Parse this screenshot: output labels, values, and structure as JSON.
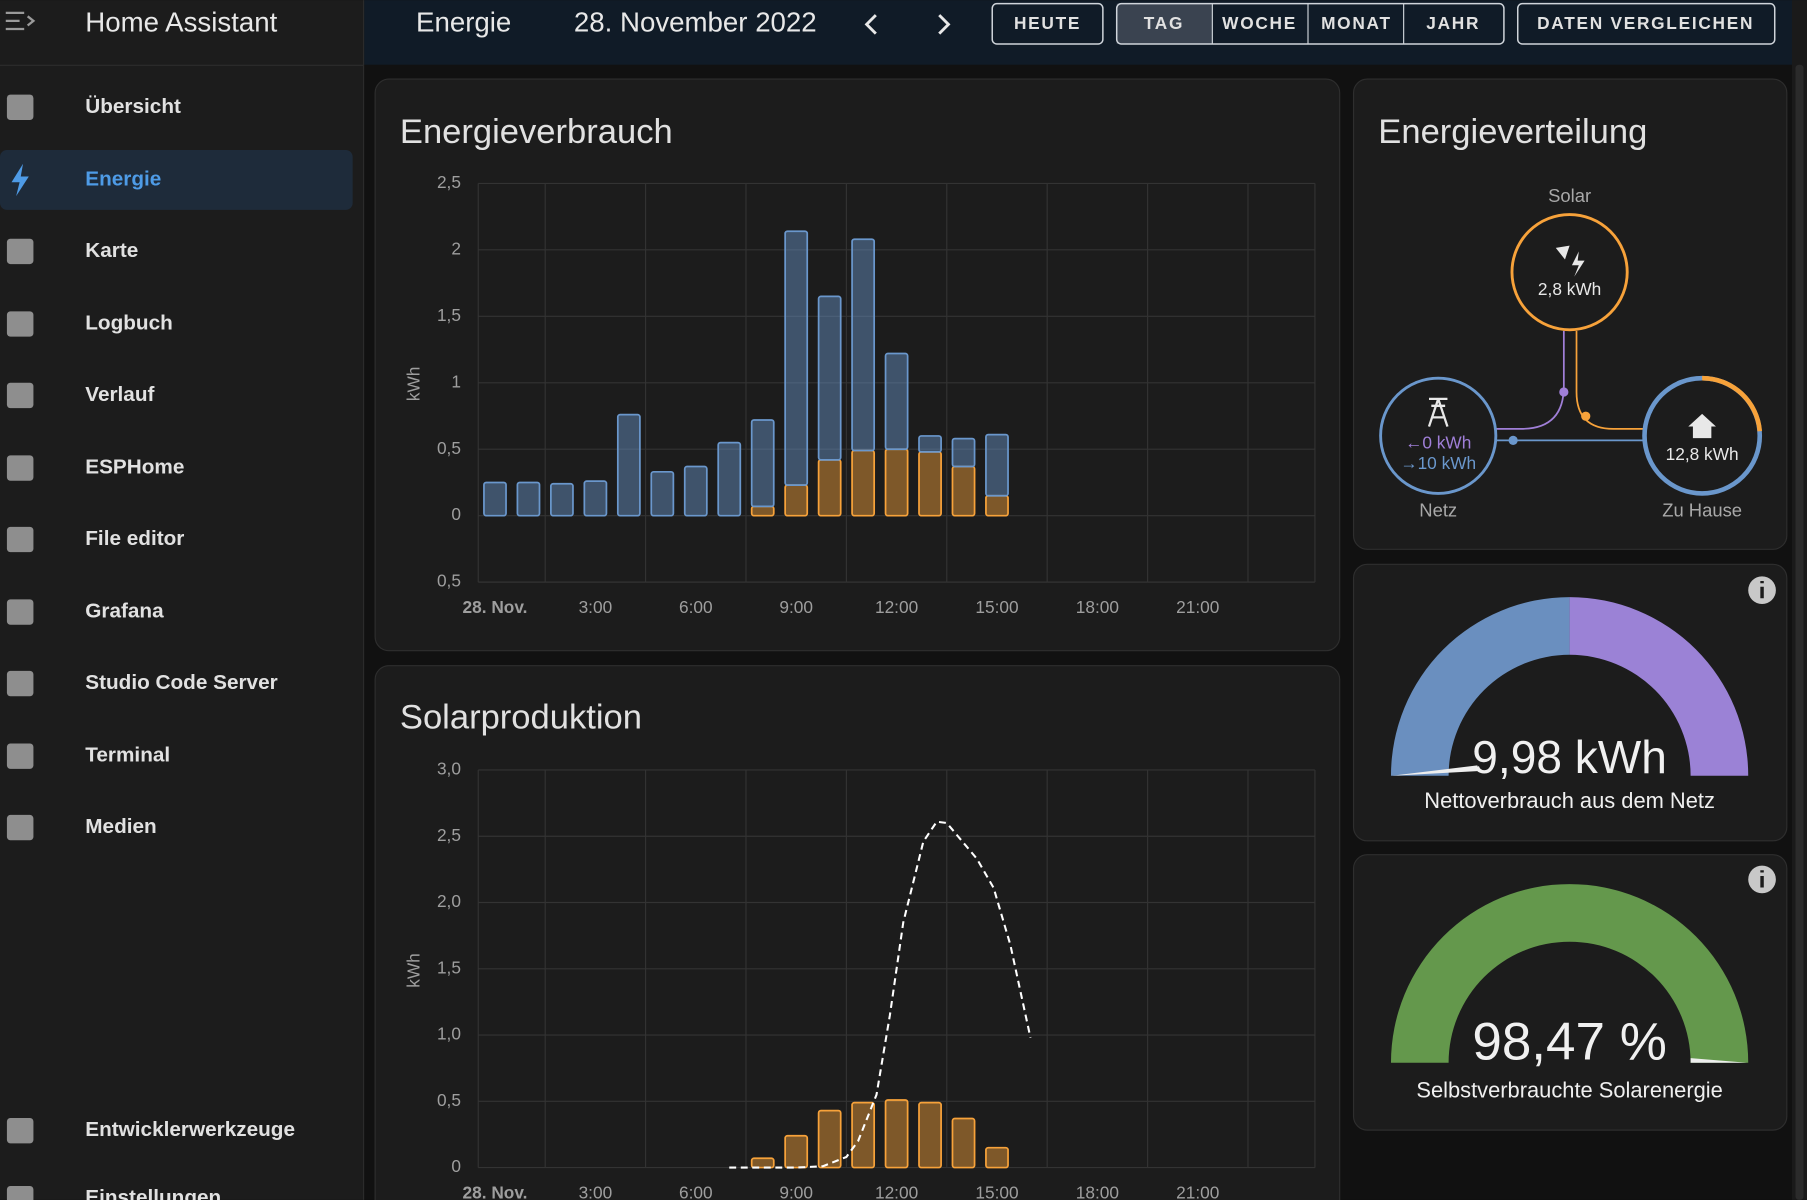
{
  "sidebar": {
    "title": "Home Assistant",
    "items": [
      "Übersicht",
      "Energie",
      "Karte",
      "Logbuch",
      "Verlauf",
      "ESPHome",
      "File editor",
      "Grafana",
      "Studio Code Server",
      "Terminal",
      "Medien"
    ],
    "bottom_items": [
      "Entwicklerwerkzeuge",
      "Einstellungen"
    ]
  },
  "header": {
    "title": "Energie",
    "date": "28. November 2022",
    "today": "HEUTE",
    "periods": [
      "TAG",
      "WOCHE",
      "MONAT",
      "JAHR"
    ],
    "compare": "DATEN VERGLEICHEN"
  },
  "consumption": {
    "type": "bar",
    "title": "Energieverbrauch",
    "y_label": "kWh",
    "x": [
      0,
      1,
      2,
      3,
      4,
      5,
      6,
      7,
      8,
      9,
      10,
      11,
      12,
      13,
      14,
      15
    ],
    "series": [
      {
        "color": "#f7a23a",
        "values": [
          0,
          0,
          0,
          0,
          0,
          0,
          0,
          0,
          0.07,
          0.23,
          0.42,
          0.49,
          0.5,
          0.48,
          0.37,
          0.15
        ]
      },
      {
        "color": "#6a97cc",
        "values": [
          0.25,
          0.25,
          0.24,
          0.26,
          0.76,
          0.33,
          0.37,
          0.55,
          0.65,
          1.91,
          1.23,
          1.59,
          0.72,
          0.12,
          0.21,
          0.46
        ]
      }
    ],
    "xlim": [
      -0.5,
      24.5
    ],
    "ylim": [
      -0.5,
      2.5
    ],
    "yticks": [
      {
        "value": 2.5,
        "label": "2,5"
      },
      2,
      {
        "value": 1.5,
        "label": "1,5"
      },
      1,
      {
        "value": 0.5,
        "label": "0,5"
      },
      0,
      {
        "value": -0.5,
        "label": "0,5"
      }
    ],
    "xticks": [
      {
        "value": 0,
        "label": "28. Nov."
      },
      {
        "value": 3,
        "label": "3:00"
      },
      {
        "value": 6,
        "label": "6:00"
      },
      {
        "value": 9,
        "label": "9:00"
      },
      {
        "value": 12,
        "label": "12:00"
      },
      {
        "value": 15,
        "label": "15:00"
      },
      {
        "value": 18,
        "label": "18:00"
      },
      {
        "value": 21,
        "label": "21:00"
      }
    ],
    "grid": true
  },
  "solar": {
    "type": "bar",
    "title": "Solarproduktion",
    "y_label": "kWh",
    "x": [
      8,
      9,
      10,
      11,
      12,
      13,
      14,
      15
    ],
    "series": [
      {
        "color": "#f7a23a",
        "values": [
          0.07,
          0.24,
          0.43,
          0.49,
          0.51,
          0.49,
          0.37,
          0.15
        ]
      }
    ],
    "forecast": {
      "color": "#ffffff",
      "x": [
        7,
        8,
        9,
        9.8,
        10.5,
        10.85,
        11.4,
        11.8,
        12.2,
        12.8,
        13.2,
        13.5,
        14.4,
        14.9,
        15.4,
        16
      ],
      "values": [
        0,
        0,
        0,
        0.01,
        0.08,
        0.2,
        0.55,
        1.15,
        1.85,
        2.46,
        2.61,
        2.6,
        2.33,
        2.11,
        1.68,
        0.98
      ]
    },
    "xlim": [
      -0.5,
      24.5
    ],
    "ylim": [
      0,
      3
    ],
    "yticks": [
      {
        "value": 3,
        "label": "3,0"
      },
      {
        "value": 2.5,
        "label": "2,5"
      },
      {
        "value": 2,
        "label": "2,0"
      },
      {
        "value": 1.5,
        "label": "1,5"
      },
      {
        "value": 1,
        "label": "1,0"
      },
      {
        "value": 0.5,
        "label": "0,5"
      },
      0
    ],
    "xticks": [
      {
        "value": 0,
        "label": "28. Nov."
      },
      {
        "value": 3,
        "label": "3:00"
      },
      {
        "value": 6,
        "label": "6:00"
      },
      {
        "value": 9,
        "label": "9:00"
      },
      {
        "value": 12,
        "label": "12:00"
      },
      {
        "value": 15,
        "label": "15:00"
      },
      {
        "value": 18,
        "label": "18:00"
      },
      {
        "value": 21,
        "label": "21:00"
      }
    ],
    "grid": true
  },
  "distribution": {
    "title": "Energieverteilung",
    "solar": {
      "label": "Solar",
      "value": "2,8 kWh"
    },
    "grid": {
      "label": "Netz",
      "returned": "←0 kWh",
      "consumed": "→10 kWh"
    },
    "home": {
      "label": "Zu Hause",
      "value": "12,8 kWh"
    }
  },
  "gauges": [
    {
      "value": "9,98 kWh",
      "label": "Nettoverbrauch aus dem Netz"
    },
    {
      "value": "98,47 %",
      "label": "Selbstverbrauchte Solarenergie"
    }
  ]
}
